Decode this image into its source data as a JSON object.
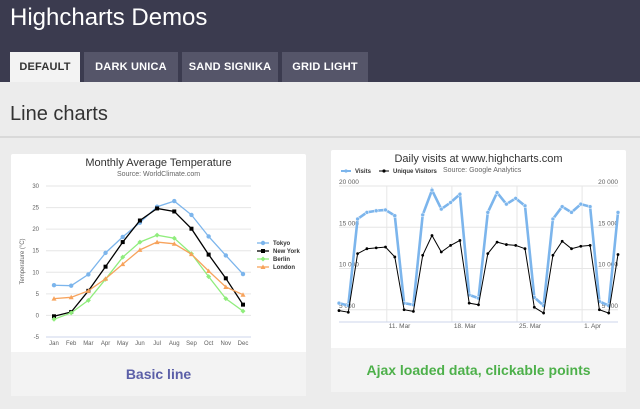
{
  "site": {
    "title": "Highcharts Demos"
  },
  "tabs": [
    {
      "label": "DEFAULT",
      "active": true
    },
    {
      "label": "DARK UNICA",
      "active": false
    },
    {
      "label": "SAND SIGNIKA",
      "active": false
    },
    {
      "label": "GRID LIGHT",
      "active": false
    }
  ],
  "section": {
    "title": "Line charts"
  },
  "colors": {
    "header": "#3b3b4f",
    "tab": "#555569",
    "basic_line_link": "#5b5fa8",
    "ajax_link": "#4db04a",
    "tokyo": "#7cb5ec",
    "new_york": "#000000",
    "berlin": "#90ed7d",
    "london": "#f7a35c",
    "visits": "#7cb5ec",
    "unique_visitors": "#000000"
  },
  "cards": [
    {
      "link_label": "Basic line"
    },
    {
      "link_label": "Ajax loaded data, clickable points"
    }
  ],
  "chart_data": [
    {
      "type": "line",
      "title": "Monthly Average Temperature",
      "subtitle": "Source: WorldClimate.com",
      "ylabel": "Temperature (°C)",
      "xlabel": "",
      "ylim": [
        -5,
        30
      ],
      "yticks": [
        -5,
        0,
        5,
        10,
        15,
        20,
        25,
        30
      ],
      "grid": true,
      "legend": "right",
      "categories": [
        "Jan",
        "Feb",
        "Mar",
        "Apr",
        "May",
        "Jun",
        "Jul",
        "Aug",
        "Sep",
        "Oct",
        "Nov",
        "Dec"
      ],
      "series": [
        {
          "name": "Tokyo",
          "color": "#7cb5ec",
          "values": [
            7.0,
            6.9,
            9.5,
            14.5,
            18.2,
            21.5,
            25.2,
            26.5,
            23.3,
            18.3,
            13.9,
            9.6
          ]
        },
        {
          "name": "New York",
          "color": "#000000",
          "values": [
            -0.2,
            0.8,
            5.7,
            11.3,
            17.0,
            22.0,
            24.8,
            24.1,
            20.1,
            14.1,
            8.6,
            2.5
          ]
        },
        {
          "name": "Berlin",
          "color": "#90ed7d",
          "values": [
            -0.9,
            0.6,
            3.5,
            8.4,
            13.5,
            17.0,
            18.6,
            17.9,
            14.3,
            9.0,
            3.9,
            1.0
          ]
        },
        {
          "name": "London",
          "color": "#f7a35c",
          "values": [
            3.9,
            4.2,
            5.7,
            8.5,
            11.9,
            15.2,
            17.0,
            16.6,
            14.2,
            10.3,
            6.6,
            4.8
          ]
        }
      ]
    },
    {
      "type": "line",
      "title": "Daily visits at www.highcharts.com",
      "subtitle": "Source: Google Analytics",
      "ylim": [
        4000,
        20000
      ],
      "yticks": [
        {
          "value": 5000,
          "label": "5 000"
        },
        {
          "value": 10000,
          "label": "10 000"
        },
        {
          "value": 15000,
          "label": "15 000"
        },
        {
          "value": 20000,
          "label": "20 000"
        }
      ],
      "grid": true,
      "legend": "top-left",
      "xlabels": [
        {
          "index": 6,
          "label": "11. Mar"
        },
        {
          "index": 13,
          "label": "18. Mar"
        },
        {
          "index": 20,
          "label": "25. Mar"
        },
        {
          "index": 27,
          "label": "1. Apr"
        }
      ],
      "series": [
        {
          "name": "Visits",
          "color": "#7cb5ec",
          "values": [
            5800,
            5500,
            16000,
            16800,
            17000,
            17100,
            16400,
            5800,
            5600,
            16500,
            19500,
            17200,
            18000,
            19000,
            6800,
            6400,
            16800,
            19200,
            17800,
            18500,
            17600,
            6500,
            5500,
            16000,
            17500,
            16800,
            17800,
            17500,
            6000,
            5500,
            16800
          ]
        },
        {
          "name": "Unique Visitors",
          "color": "#000000",
          "values": [
            4900,
            4700,
            11800,
            12400,
            12500,
            12600,
            11400,
            5000,
            4800,
            11600,
            14000,
            12000,
            12800,
            13400,
            5800,
            5600,
            11800,
            13200,
            12900,
            12800,
            12400,
            5300,
            4600,
            11600,
            13300,
            12400,
            12700,
            12800,
            5000,
            4600,
            11700
          ]
        }
      ]
    }
  ]
}
